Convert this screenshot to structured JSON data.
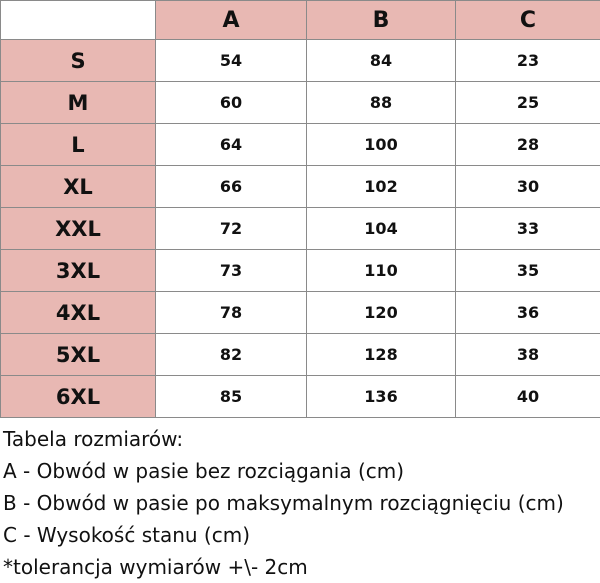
{
  "table": {
    "columns": [
      "A",
      "B",
      "C"
    ],
    "rows": [
      {
        "size": "S",
        "values": [
          "54",
          "84",
          "23"
        ]
      },
      {
        "size": "M",
        "values": [
          "60",
          "88",
          "25"
        ]
      },
      {
        "size": "L",
        "values": [
          "64",
          "100",
          "28"
        ]
      },
      {
        "size": "XL",
        "values": [
          "66",
          "102",
          "30"
        ]
      },
      {
        "size": "XXL",
        "values": [
          "72",
          "104",
          "33"
        ]
      },
      {
        "size": "3XL",
        "values": [
          "73",
          "110",
          "35"
        ]
      },
      {
        "size": "4XL",
        "values": [
          "78",
          "120",
          "36"
        ]
      },
      {
        "size": "5XL",
        "values": [
          "82",
          "128",
          "38"
        ]
      },
      {
        "size": "6XL",
        "values": [
          "85",
          "136",
          "40"
        ]
      }
    ],
    "header_color": "#e8b8b3"
  },
  "notes": {
    "title": "Tabela rozmiarów:",
    "lines": [
      "A - Obwód w pasie bez rozciągania (cm)",
      "B - Obwód w pasie po maksymalnym rozciągnięciu (cm)",
      "C - Wysokość stanu (cm)",
      "*tolerancja wymiarów +\\- 2cm"
    ]
  }
}
